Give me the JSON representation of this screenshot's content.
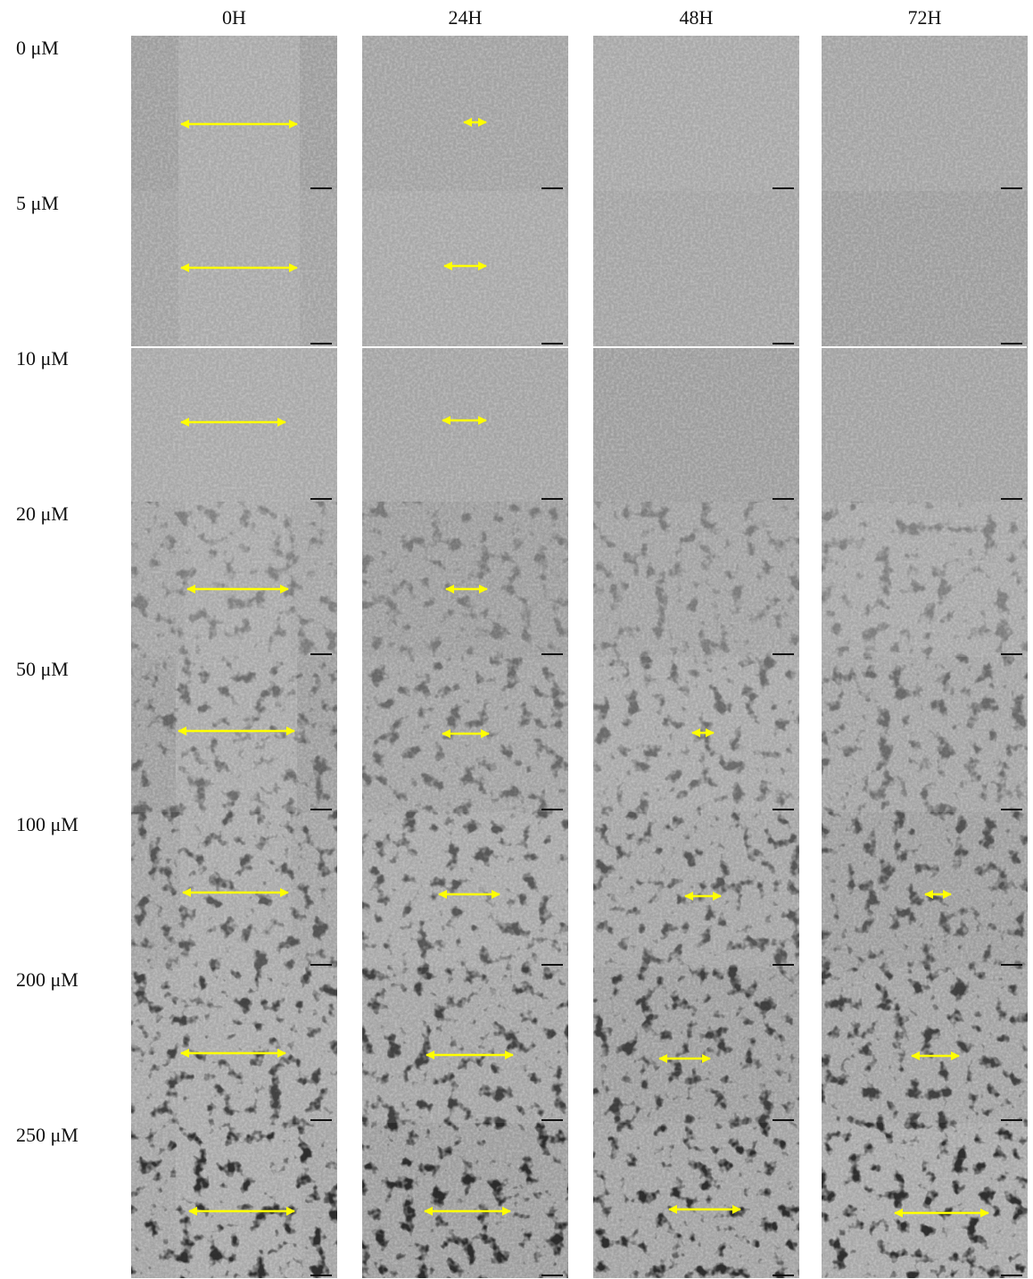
{
  "columns": [
    "0H",
    "24H",
    "48H",
    "72H"
  ],
  "rows": [
    "0 μM",
    "5 μM",
    "10 μM",
    "20 μM",
    "50 μM",
    "100 μM",
    "200 μM",
    "250 μM"
  ]
}
